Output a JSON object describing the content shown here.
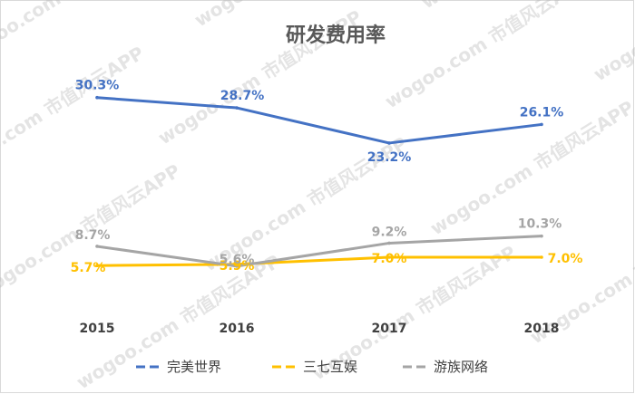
{
  "watermark": {
    "text": "wogoo.com  市值风云APP"
  },
  "chart_data": {
    "type": "line",
    "title": "研发费用率",
    "xlabel": "",
    "ylabel": "",
    "categories": [
      "2015",
      "2016",
      "2017",
      "2018"
    ],
    "ylim": [
      0,
      35
    ],
    "grid": false,
    "legend_position": "bottom",
    "series": [
      {
        "name": "完美世界",
        "color": "#4472c4",
        "values": [
          30.3,
          28.7,
          23.2,
          26.1
        ],
        "labels": [
          "30.3%",
          "28.7%",
          "23.2%",
          "26.1%"
        ]
      },
      {
        "name": "三七互娱",
        "color": "#ffc000",
        "values": [
          5.7,
          5.9,
          7.0,
          7.0
        ],
        "labels": [
          "5.7%",
          "5.9%",
          "7.0%",
          "7.0%"
        ]
      },
      {
        "name": "游族网络",
        "color": "#a5a5a5",
        "values": [
          8.7,
          5.6,
          9.2,
          10.3
        ],
        "labels": [
          "8.7%",
          "5.6%",
          "9.2%",
          "10.3%"
        ]
      }
    ]
  }
}
